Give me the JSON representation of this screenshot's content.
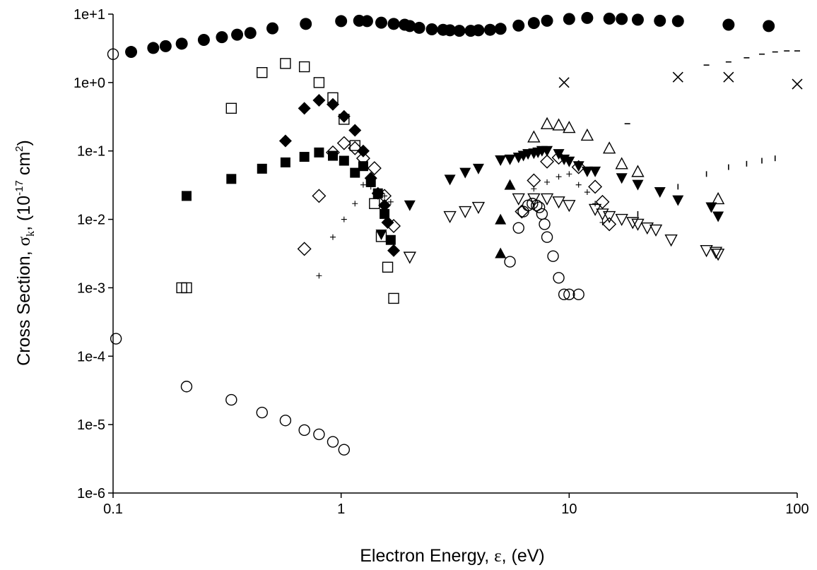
{
  "chart_data": {
    "type": "scatter",
    "x_scale": "log",
    "y_scale": "log",
    "xlim": [
      0.1,
      100
    ],
    "ylim": [
      1e-06,
      10
    ],
    "x_ticks": [
      0.1,
      1,
      10,
      100
    ],
    "x_tick_labels": [
      "0.1",
      "1",
      "10",
      "100"
    ],
    "y_ticks": [
      1e-06,
      1e-05,
      0.0001,
      0.001,
      0.01,
      0.1,
      1,
      10
    ],
    "y_tick_labels": [
      "1e-6",
      "1e-5",
      "1e-4",
      "1e-3",
      "1e-2",
      "1e-1",
      "1e+0",
      "1e+1"
    ],
    "xlabel": {
      "pre": "Electron Energy, ",
      "sym": "ε",
      "post": ", (eV)"
    },
    "ylabel": {
      "pre": "Cross Section, ",
      "sym": "σ",
      "sub": "k",
      "mid": ", (10",
      "sup": "-17",
      "post": " cm",
      "sup2": "2",
      "end": ")"
    },
    "grid": false,
    "legend": "none",
    "series": [
      {
        "marker": "filled-circle",
        "points": [
          [
            0.12,
            2.8
          ],
          [
            0.15,
            3.2
          ],
          [
            0.17,
            3.4
          ],
          [
            0.2,
            3.7
          ],
          [
            0.25,
            4.2
          ],
          [
            0.3,
            4.6
          ],
          [
            0.35,
            5.0
          ],
          [
            0.4,
            5.3
          ],
          [
            0.5,
            6.2
          ],
          [
            0.7,
            7.2
          ],
          [
            1.0,
            7.9
          ],
          [
            1.2,
            8.0
          ],
          [
            1.3,
            7.9
          ],
          [
            1.5,
            7.5
          ],
          [
            1.7,
            7.2
          ],
          [
            1.9,
            7.0
          ],
          [
            2.0,
            6.7
          ],
          [
            2.2,
            6.3
          ],
          [
            2.5,
            6.0
          ],
          [
            2.8,
            5.9
          ],
          [
            3.0,
            5.8
          ],
          [
            3.3,
            5.7
          ],
          [
            3.7,
            5.7
          ],
          [
            4.0,
            5.8
          ],
          [
            4.5,
            5.9
          ],
          [
            5.0,
            6.1
          ],
          [
            6.0,
            6.8
          ],
          [
            7.0,
            7.4
          ],
          [
            8.0,
            8.0
          ],
          [
            10,
            8.5
          ],
          [
            12,
            8.8
          ],
          [
            15,
            8.6
          ],
          [
            17,
            8.5
          ],
          [
            20,
            8.3
          ],
          [
            25,
            8.0
          ],
          [
            30,
            7.9
          ],
          [
            50,
            7.0
          ],
          [
            75,
            6.7
          ]
        ]
      },
      {
        "marker": "open-circle",
        "points": [
          [
            0.1,
            2.6
          ],
          [
            0.103,
            0.00018
          ],
          [
            0.21,
            3.6e-05
          ],
          [
            0.33,
            2.3e-05
          ],
          [
            0.45,
            1.5e-05
          ],
          [
            0.57,
            1.15e-05
          ],
          [
            0.69,
            8.3e-06
          ],
          [
            0.8,
            7.2e-06
          ],
          [
            0.92,
            5.6e-06
          ],
          [
            1.03,
            4.3e-06
          ],
          [
            5.5,
            0.0024
          ],
          [
            6.0,
            0.0075
          ],
          [
            6.3,
            0.013
          ],
          [
            6.6,
            0.016
          ],
          [
            6.9,
            0.017
          ],
          [
            7.2,
            0.016
          ],
          [
            7.4,
            0.015
          ],
          [
            7.6,
            0.012
          ],
          [
            7.8,
            0.0085
          ],
          [
            8.0,
            0.0055
          ],
          [
            8.5,
            0.0029
          ],
          [
            9.0,
            0.0014
          ],
          [
            9.5,
            0.0008
          ],
          [
            10.0,
            0.0008
          ],
          [
            11.0,
            0.0008
          ]
        ]
      },
      {
        "marker": "open-square",
        "points": [
          [
            0.2,
            0.001
          ],
          [
            0.21,
            0.001
          ],
          [
            0.33,
            0.42
          ],
          [
            0.45,
            1.4
          ],
          [
            0.57,
            1.9
          ],
          [
            0.69,
            1.7
          ],
          [
            0.8,
            1.0
          ],
          [
            0.92,
            0.6
          ],
          [
            1.03,
            0.29
          ],
          [
            1.15,
            0.12
          ],
          [
            1.4,
            0.017
          ],
          [
            1.5,
            0.0056
          ],
          [
            1.6,
            0.002
          ],
          [
            1.7,
            0.0007
          ]
        ]
      },
      {
        "marker": "filled-diamond",
        "points": [
          [
            0.57,
            0.14
          ],
          [
            0.69,
            0.42
          ],
          [
            0.8,
            0.55
          ],
          [
            0.92,
            0.48
          ],
          [
            1.03,
            0.32
          ],
          [
            1.15,
            0.2
          ],
          [
            1.25,
            0.1
          ],
          [
            1.35,
            0.04
          ],
          [
            1.45,
            0.024
          ],
          [
            1.55,
            0.016
          ],
          [
            1.6,
            0.009
          ],
          [
            1.7,
            0.0035
          ]
        ]
      },
      {
        "marker": "filled-square",
        "points": [
          [
            0.21,
            0.022
          ],
          [
            0.33,
            0.039
          ],
          [
            0.45,
            0.055
          ],
          [
            0.57,
            0.068
          ],
          [
            0.69,
            0.082
          ],
          [
            0.8,
            0.095
          ],
          [
            0.92,
            0.085
          ],
          [
            1.03,
            0.072
          ],
          [
            1.15,
            0.048
          ],
          [
            1.25,
            0.06
          ],
          [
            1.35,
            0.035
          ],
          [
            1.45,
            0.024
          ],
          [
            1.55,
            0.012
          ],
          [
            1.65,
            0.005
          ]
        ]
      },
      {
        "marker": "open-diamond",
        "points": [
          [
            0.69,
            0.0037
          ],
          [
            0.8,
            0.022
          ],
          [
            0.92,
            0.095
          ],
          [
            1.03,
            0.13
          ],
          [
            1.15,
            0.11
          ],
          [
            1.25,
            0.078
          ],
          [
            1.4,
            0.056
          ],
          [
            1.55,
            0.022
          ],
          [
            1.7,
            0.008
          ],
          [
            6.2,
            0.013
          ],
          [
            7.0,
            0.037
          ],
          [
            8.0,
            0.07
          ],
          [
            9.0,
            0.08
          ],
          [
            11,
            0.058
          ],
          [
            13,
            0.03
          ],
          [
            14,
            0.018
          ],
          [
            15,
            0.0085
          ]
        ]
      },
      {
        "marker": "filled-down-triangle",
        "points": [
          [
            1.5,
            0.006
          ],
          [
            2.0,
            0.016
          ],
          [
            3.0,
            0.038
          ],
          [
            3.5,
            0.048
          ],
          [
            4.0,
            0.055
          ],
          [
            5.0,
            0.073
          ],
          [
            5.5,
            0.075
          ],
          [
            6.0,
            0.08
          ],
          [
            6.3,
            0.085
          ],
          [
            6.6,
            0.09
          ],
          [
            7.0,
            0.092
          ],
          [
            7.3,
            0.095
          ],
          [
            7.6,
            0.1
          ],
          [
            8.0,
            0.1
          ],
          [
            9.0,
            0.09
          ],
          [
            9.5,
            0.075
          ],
          [
            10,
            0.07
          ],
          [
            11,
            0.06
          ],
          [
            12,
            0.05
          ],
          [
            13,
            0.05
          ],
          [
            17,
            0.04
          ],
          [
            20,
            0.032
          ],
          [
            25,
            0.025
          ],
          [
            30,
            0.019
          ],
          [
            42,
            0.015
          ],
          [
            45,
            0.011
          ]
        ]
      },
      {
        "marker": "open-down-triangle",
        "points": [
          [
            2.0,
            0.0028
          ],
          [
            3.0,
            0.011
          ],
          [
            3.5,
            0.013
          ],
          [
            4.0,
            0.015
          ],
          [
            6.0,
            0.02
          ],
          [
            7.0,
            0.02
          ],
          [
            8.0,
            0.02
          ],
          [
            9.0,
            0.018
          ],
          [
            10,
            0.016
          ],
          [
            13,
            0.014
          ],
          [
            14,
            0.012
          ],
          [
            15,
            0.011
          ],
          [
            17,
            0.01
          ],
          [
            19,
            0.009
          ],
          [
            20,
            0.0085
          ],
          [
            22,
            0.0075
          ],
          [
            24,
            0.007
          ],
          [
            28,
            0.005
          ],
          [
            40,
            0.0035
          ],
          [
            44,
            0.0033
          ],
          [
            45,
            0.0031
          ]
        ]
      },
      {
        "marker": "open-up-triangle",
        "points": [
          [
            7.0,
            0.16
          ],
          [
            8.0,
            0.25
          ],
          [
            9.0,
            0.24
          ],
          [
            10,
            0.22
          ],
          [
            12,
            0.17
          ],
          [
            15,
            0.11
          ],
          [
            17,
            0.065
          ],
          [
            20,
            0.05
          ],
          [
            45,
            0.02
          ]
        ]
      },
      {
        "marker": "filled-up-triangle",
        "points": [
          [
            5.0,
            0.0032
          ],
          [
            5.0,
            0.01
          ],
          [
            5.5,
            0.032
          ]
        ]
      },
      {
        "marker": "cross",
        "points": [
          [
            9.5,
            1.0
          ],
          [
            30,
            1.2
          ],
          [
            50,
            1.2
          ],
          [
            100,
            0.95
          ]
        ]
      },
      {
        "marker": "plus",
        "points": [
          [
            0.8,
            0.0015
          ],
          [
            0.92,
            0.0055
          ],
          [
            1.03,
            0.01
          ],
          [
            1.15,
            0.017
          ],
          [
            1.25,
            0.032
          ],
          [
            1.35,
            0.03
          ],
          [
            1.45,
            0.026
          ],
          [
            1.55,
            0.022
          ],
          [
            1.65,
            0.018
          ],
          [
            7.0,
            0.028
          ],
          [
            8.0,
            0.035
          ],
          [
            9.0,
            0.042
          ],
          [
            10,
            0.046
          ],
          [
            11,
            0.032
          ],
          [
            12,
            0.025
          ],
          [
            13,
            0.017
          ],
          [
            14,
            0.009
          ]
        ]
      },
      {
        "marker": "hbar",
        "points": [
          [
            18,
            0.25
          ],
          [
            40,
            1.8
          ],
          [
            50,
            2.0
          ],
          [
            60,
            2.3
          ],
          [
            70,
            2.6
          ],
          [
            80,
            2.8
          ],
          [
            90,
            2.9
          ],
          [
            100,
            2.9
          ]
        ]
      },
      {
        "marker": "vbar",
        "points": [
          [
            20,
            0.012
          ],
          [
            30,
            0.03
          ],
          [
            40,
            0.046
          ],
          [
            50,
            0.058
          ],
          [
            60,
            0.065
          ],
          [
            70,
            0.072
          ],
          [
            80,
            0.078
          ]
        ]
      }
    ]
  }
}
